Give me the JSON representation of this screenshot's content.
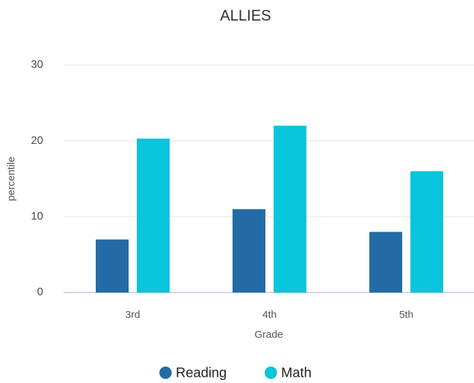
{
  "chart_data": {
    "type": "bar",
    "title": "ALLIES",
    "x_label": "Grade",
    "y_label": "percentile",
    "categories": [
      "3rd",
      "4th",
      "5th"
    ],
    "series": [
      {
        "name": "Reading",
        "color": "#236ba6",
        "values": [
          7,
          11,
          8
        ]
      },
      {
        "name": "Math",
        "color": "#08c4dc",
        "values": [
          20.3,
          22,
          16
        ]
      }
    ],
    "ylim": [
      0,
      30
    ],
    "yticks": [
      0,
      10,
      20,
      30
    ],
    "grid": true,
    "legend": "bottom"
  }
}
